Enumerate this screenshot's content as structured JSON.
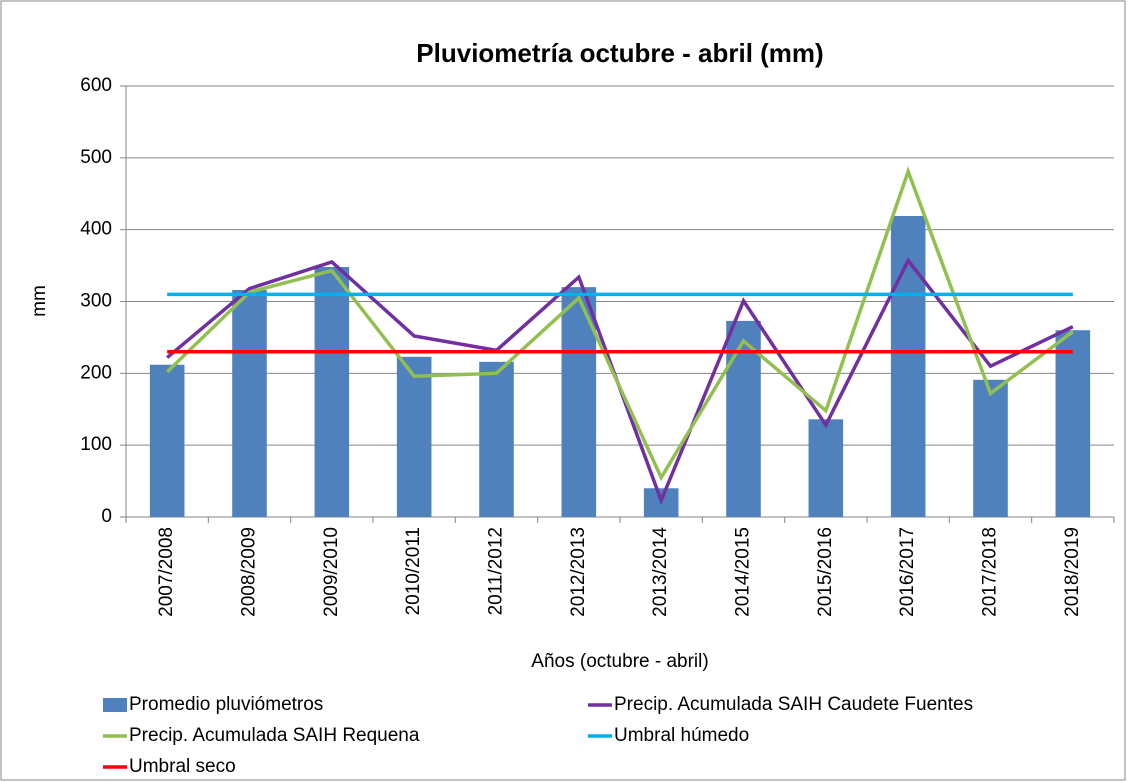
{
  "chart_data": {
    "type": "bar",
    "title": "Pluviometría octubre - abril (mm)",
    "x_label": "Años (octubre - abril)",
    "y_label": "mm",
    "categories": [
      "2007/2008",
      "2008/2009",
      "2009/2010",
      "2010/2011",
      "2011/2012",
      "2012/2013",
      "2013/2014",
      "2014/2015",
      "2015/2016",
      "2016/2017",
      "2017/2018",
      "2018/2019"
    ],
    "series": [
      {
        "name": "Promedio pluviómetros",
        "type": "bar",
        "color": "#4f81bd",
        "values": [
          212,
          316,
          348,
          223,
          216,
          320,
          40,
          273,
          136,
          419,
          191,
          260
        ]
      },
      {
        "name": "Precip. Acumulada SAIH Caudete Fuentes",
        "type": "line",
        "color": "#7030a0",
        "values": [
          222,
          318,
          355,
          252,
          232,
          334,
          23,
          301,
          128,
          357,
          210,
          265
        ]
      },
      {
        "name": "Precip. Acumulada SAIH Requena",
        "type": "line",
        "color": "#92c050",
        "values": [
          202,
          313,
          343,
          196,
          200,
          305,
          55,
          245,
          148,
          481,
          172,
          258
        ]
      },
      {
        "name": "Umbral húmedo",
        "type": "line",
        "color": "#00b0f0",
        "values": [
          310,
          310,
          310,
          310,
          310,
          310,
          310,
          310,
          310,
          310,
          310,
          310
        ]
      },
      {
        "name": "Umbral seco",
        "type": "line",
        "color": "#ff0000",
        "values": [
          230,
          230,
          230,
          230,
          230,
          230,
          230,
          230,
          230,
          230,
          230,
          230
        ]
      }
    ],
    "ylim": [
      0,
      600
    ],
    "yticks": [
      0,
      100,
      200,
      300,
      400,
      500,
      600
    ],
    "grid": true,
    "legend": "bottom"
  }
}
